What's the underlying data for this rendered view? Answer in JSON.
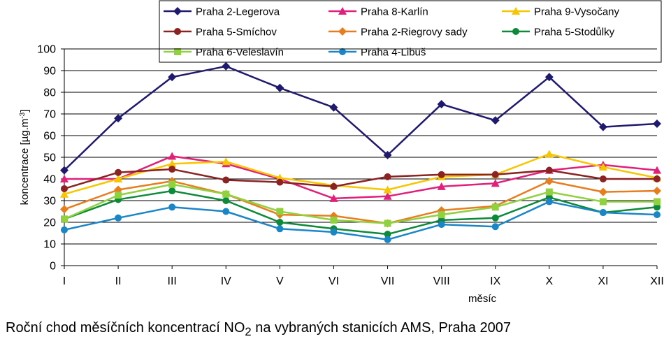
{
  "chart_data": {
    "type": "line",
    "categories": [
      "I",
      "II",
      "III",
      "IV",
      "V",
      "VI",
      "VII",
      "VIII",
      "IX",
      "X",
      "XI",
      "XII"
    ],
    "xlabel": "měsíc",
    "ylabel": {
      "text": "koncentrace [µg.m",
      "sup": "-3",
      "close": "]"
    },
    "ylim": [
      0,
      100
    ],
    "yticks": [
      0,
      10,
      20,
      30,
      40,
      50,
      60,
      70,
      80,
      90,
      100
    ],
    "grid": true,
    "legend_position": "top",
    "series": [
      {
        "name": "Praha 2-Legerova",
        "color": "#1f1a6e",
        "marker": "diamond",
        "values": [
          44,
          68,
          87,
          92,
          82,
          73,
          51,
          74.5,
          67,
          87,
          64,
          65.5
        ]
      },
      {
        "name": "Praha 8-Karlín",
        "color": "#e0207a",
        "marker": "triangle",
        "values": [
          40,
          40,
          50.5,
          47,
          40,
          31,
          32,
          36.5,
          38,
          44,
          46.5,
          44
        ]
      },
      {
        "name": "Praha 9-Vysočany",
        "color": "#f7c600",
        "marker": "triangle",
        "values": [
          33,
          40,
          47,
          48,
          40.5,
          37,
          35,
          41,
          42,
          51.5,
          45.5,
          40.5
        ]
      },
      {
        "name": "Praha 5-Smíchov",
        "color": "#8b2323",
        "marker": "circle",
        "values": [
          35.5,
          43,
          44.5,
          39.5,
          38.5,
          36.5,
          41,
          42,
          42,
          44,
          40,
          40
        ]
      },
      {
        "name": "Praha 2-Riegrovy sady",
        "color": "#e87d1e",
        "marker": "diamond",
        "values": [
          26,
          35,
          39,
          33,
          23.5,
          23,
          19.5,
          25.5,
          27.5,
          39,
          34,
          34.5
        ]
      },
      {
        "name": "Praha 5-Stodůlky",
        "color": "#0c8a3a",
        "marker": "circle",
        "values": [
          21.5,
          30.5,
          34.5,
          30,
          20,
          17,
          14.5,
          21,
          22,
          31.5,
          24.5,
          27
        ]
      },
      {
        "name": "Praha 6-Veleslavín",
        "color": "#8fd13f",
        "marker": "square",
        "values": [
          21.5,
          32.5,
          37.5,
          33,
          25,
          21,
          19.5,
          23.5,
          27,
          34,
          29.5,
          29.5
        ]
      },
      {
        "name": "Praha 4-Libuš",
        "color": "#1a86c8",
        "marker": "circle",
        "values": [
          16.5,
          22,
          27,
          25,
          17,
          15.5,
          12,
          19,
          18,
          29.5,
          24.5,
          23.5
        ]
      }
    ]
  },
  "caption": {
    "text": "Roční chod měsíčních koncentrací NO",
    "sub": "2",
    "rest": " na vybraných stanicích AMS, Praha 2007"
  }
}
